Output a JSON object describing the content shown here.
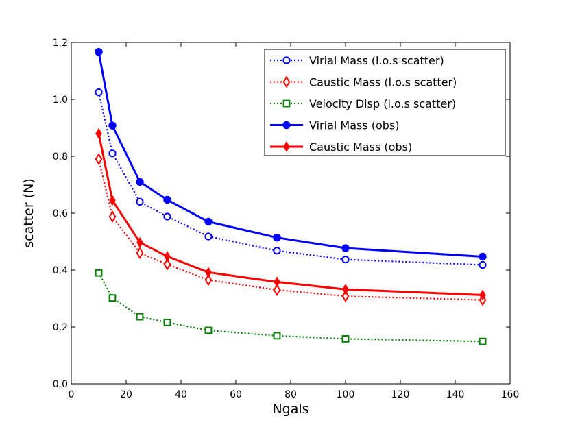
{
  "chart_data": {
    "type": "line",
    "title": "",
    "xlabel": "Ngals",
    "ylabel": "scatter (N)",
    "xlim": [
      0,
      160
    ],
    "ylim": [
      0.0,
      1.2
    ],
    "xticks": [
      0,
      20,
      40,
      60,
      80,
      100,
      120,
      140,
      160
    ],
    "yticks": [
      0.0,
      0.2,
      0.4,
      0.6,
      0.8,
      1.0,
      1.2
    ],
    "xtick_labels": [
      "0",
      "20",
      "40",
      "60",
      "80",
      "100",
      "120",
      "140",
      "160"
    ],
    "ytick_labels": [
      "0.0",
      "0.2",
      "0.4",
      "0.6",
      "0.8",
      "1.0",
      "1.2"
    ],
    "grid": false,
    "legend_position": "top-right",
    "x": [
      10,
      15,
      25,
      35,
      50,
      75,
      100,
      150
    ],
    "series": [
      {
        "name": "Virial Mass (l.o.s scatter)",
        "color": "#0000ff",
        "line_style": "dotted",
        "marker": "circle-open",
        "values": [
          1.025,
          0.81,
          0.64,
          0.588,
          0.518,
          0.468,
          0.437,
          0.418
        ]
      },
      {
        "name": "Caustic Mass (l.o.s scatter)",
        "color": "#ff0000",
        "line_style": "dotted",
        "marker": "diamond-open",
        "values": [
          0.79,
          0.588,
          0.46,
          0.42,
          0.365,
          0.33,
          0.308,
          0.295
        ]
      },
      {
        "name": "Velocity Disp (l.o.s scatter)",
        "color": "#008000",
        "line_style": "dotted",
        "marker": "square-open",
        "values": [
          0.39,
          0.302,
          0.236,
          0.216,
          0.188,
          0.169,
          0.158,
          0.149
        ]
      },
      {
        "name": "Virial Mass (obs)",
        "color": "#0000ff",
        "line_style": "solid",
        "marker": "circle-filled",
        "values": [
          1.167,
          0.908,
          0.71,
          0.647,
          0.57,
          0.514,
          0.477,
          0.447
        ]
      },
      {
        "name": "Caustic Mass (obs)",
        "color": "#ff0000",
        "line_style": "solid",
        "marker": "diamond-filled",
        "values": [
          0.88,
          0.645,
          0.497,
          0.448,
          0.392,
          0.358,
          0.332,
          0.312
        ]
      }
    ]
  }
}
